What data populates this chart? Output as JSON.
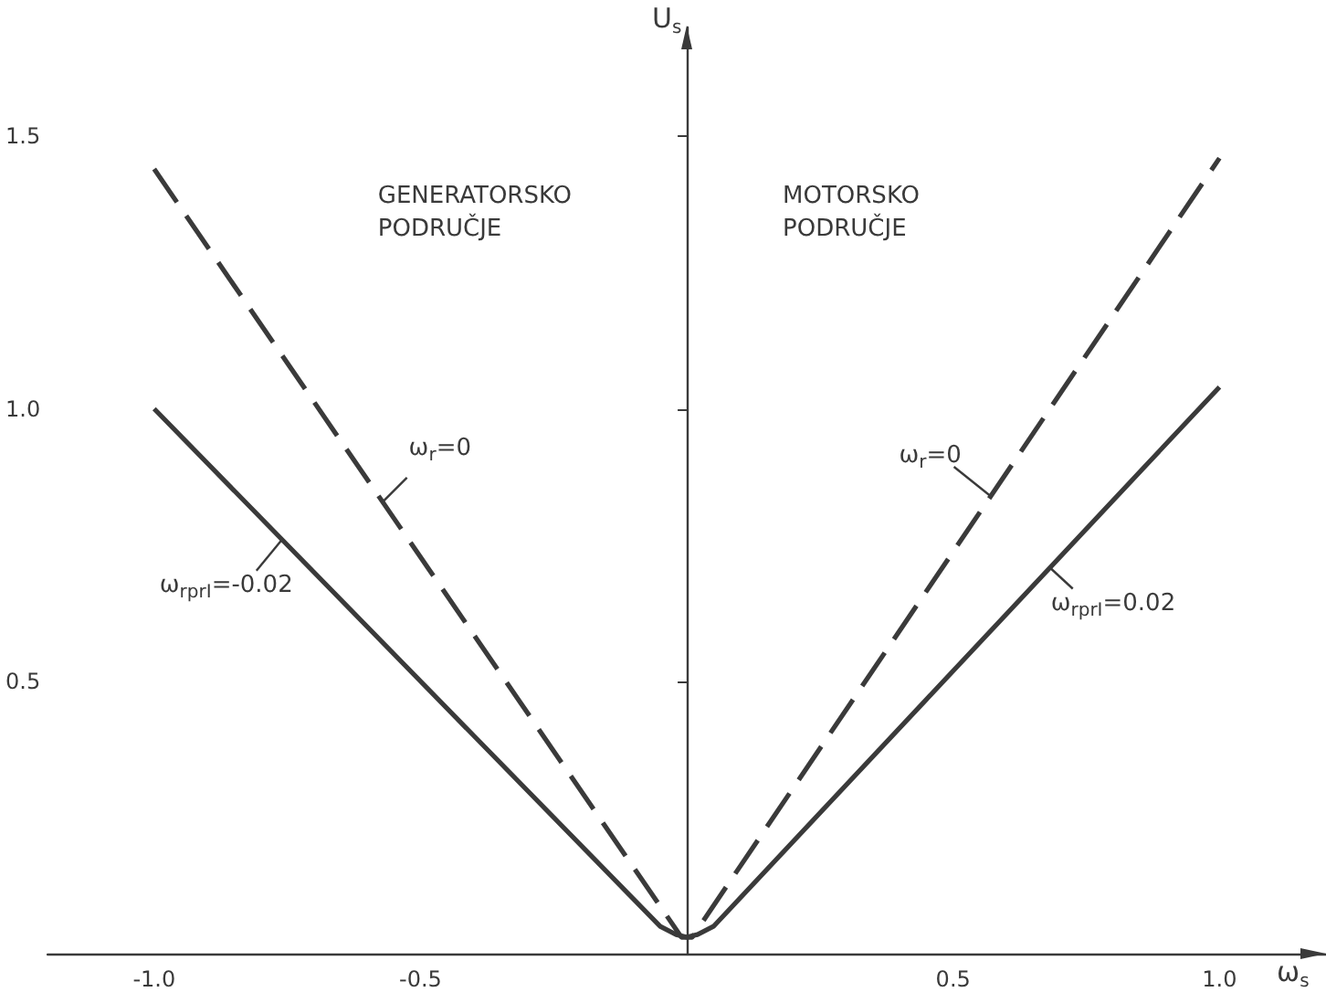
{
  "chart_data": {
    "type": "line",
    "xlabel": "ω$_{s}$",
    "ylabel": "U$_{s}$",
    "series": [
      {
        "color": "#3a3a3a",
        "line_style": "dashed",
        "x": [
          -1.0,
          -0.01,
          0.01,
          1.0
        ],
        "values": [
          1.44,
          0.03,
          0.03,
          1.46
        ]
      },
      {
        "color": "#3a3a3a",
        "line_style": "solid",
        "x": [
          -1.0,
          -0.05,
          -0.02,
          0.0,
          0.02,
          0.05,
          1.0
        ],
        "values": [
          1.0,
          0.05,
          0.035,
          0.03,
          0.035,
          0.05,
          1.04
        ]
      }
    ],
    "xlim": [
      -1.2,
      1.2
    ],
    "xticks": [
      {
        "value": -1.0,
        "label": "-1.0"
      },
      {
        "value": -0.5,
        "label": "-0.5"
      },
      {
        "value": 0.5,
        "label": "0.5"
      },
      {
        "value": 1.0,
        "label": "1.0"
      }
    ],
    "ylim": [
      0,
      1.7
    ],
    "yticks": [
      {
        "value": 0.5,
        "label": "0.5"
      },
      {
        "value": 1.0,
        "label": "1.0"
      },
      {
        "value": 1.5,
        "label": "1.5"
      }
    ],
    "annotations": [
      "GENERATORSKO\nPODRUČJE",
      "MOTORSKO\nPODRUČJE",
      {
        "text": "ω$_{r}$=0",
        "x": -0.57,
        "y": 0.83
      },
      {
        "text": "ω$_{rprI}$=-0.02",
        "x": -0.76,
        "y": 0.76
      },
      {
        "text": "ω$_{r}$=0",
        "x": 0.57,
        "y": 0.84
      },
      {
        "text": "ω$_{rprI}$=0.02",
        "x": 0.68,
        "y": 0.71
      }
    ],
    "grid": false,
    "marker": "none"
  }
}
